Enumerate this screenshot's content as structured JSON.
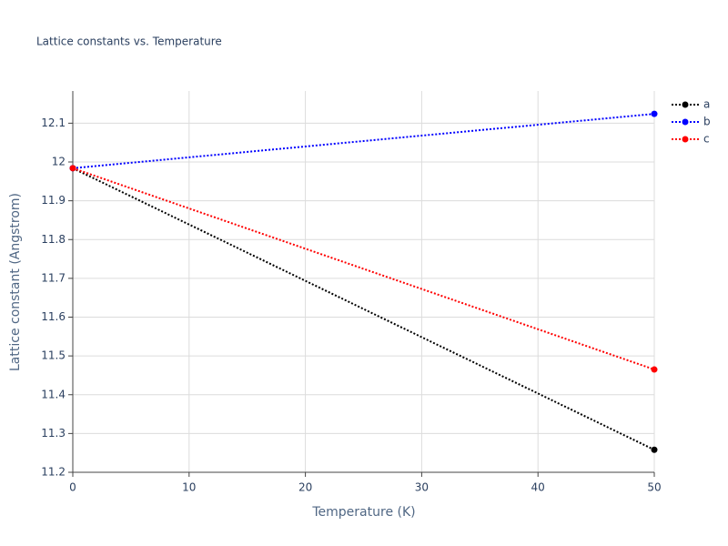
{
  "chart_data": {
    "type": "line",
    "title": "Lattice constants vs. Temperature",
    "x_label": "Temperature (K)",
    "y_label": "Lattice constant (Angstrom)",
    "x": [
      0,
      50
    ],
    "series": [
      {
        "name": "a",
        "color": "#000000",
        "values": [
          11.984,
          11.258
        ]
      },
      {
        "name": "b",
        "color": "#0000ff",
        "values": [
          11.984,
          12.124
        ]
      },
      {
        "name": "c",
        "color": "#ff0000",
        "values": [
          11.984,
          11.465
        ]
      }
    ],
    "xlim": [
      0,
      50
    ],
    "xticks": [
      0,
      10,
      20,
      30,
      40,
      50
    ],
    "ylim": [
      11.2,
      12.183
    ],
    "yticks": [
      11.2,
      11.3,
      11.4,
      11.5,
      11.6,
      11.7,
      11.8,
      11.9,
      12,
      12.1
    ],
    "grid": true,
    "legend": "top-right"
  }
}
